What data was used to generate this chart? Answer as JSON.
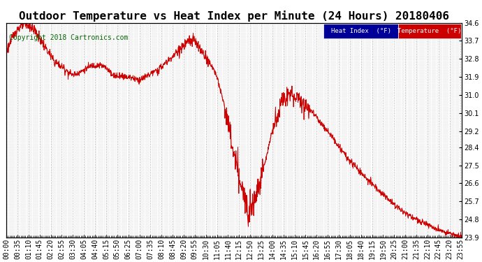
{
  "title": "Outdoor Temperature vs Heat Index per Minute (24 Hours) 20180406",
  "copyright": "Copyright 2018 Cartronics.com",
  "legend_heat": "Heat Index  (°F)",
  "legend_temp": "Temperature  (°F)",
  "ylim": [
    23.9,
    34.6
  ],
  "yticks": [
    23.9,
    24.8,
    25.7,
    26.6,
    27.5,
    28.4,
    29.2,
    30.1,
    31.0,
    31.9,
    32.8,
    33.7,
    34.6
  ],
  "line_color": "#cc0000",
  "heat_index_legend_bg": "#000099",
  "temp_legend_bg": "#cc0000",
  "legend_text_color": "#ffffff",
  "background_color": "#ffffff",
  "grid_color": "#bbbbbb",
  "title_fontsize": 11.5,
  "copyright_fontsize": 7,
  "tick_fontsize": 7
}
